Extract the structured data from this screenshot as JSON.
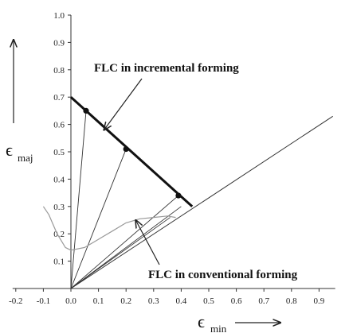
{
  "chart_data": {
    "type": "line",
    "title": "",
    "xlabel": {
      "symbol": "ϵ",
      "subscript": "min"
    },
    "ylabel": {
      "symbol": "ϵ",
      "subscript": "maj"
    },
    "xlim": [
      -0.2,
      0.95
    ],
    "ylim": [
      0,
      1.0
    ],
    "x_ticks": [
      "-0.2",
      "-0.1",
      "0.0",
      "0.1",
      "0.2",
      "0.3",
      "0.4",
      "0.5",
      "0.6",
      "0.7",
      "0.8",
      "0.9"
    ],
    "y_ticks": [
      "0.1",
      "0.2",
      "0.3",
      "0.4",
      "0.5",
      "0.6",
      "0.7",
      "0.8",
      "0.9",
      "1.0"
    ],
    "grid": false,
    "series": [
      {
        "name": "FLC in incremental forming",
        "style": "thick",
        "color": "#111111",
        "x": [
          0.0,
          0.44
        ],
        "y": [
          0.7,
          0.3
        ]
      },
      {
        "name": "FLC in conventional forming",
        "style": "thin",
        "color": "#9a9a9a",
        "x": [
          -0.1,
          -0.08,
          -0.05,
          -0.02,
          0.0,
          0.05,
          0.1,
          0.15,
          0.2,
          0.25,
          0.3,
          0.35,
          0.38
        ],
        "y": [
          0.3,
          0.27,
          0.2,
          0.15,
          0.14,
          0.15,
          0.18,
          0.21,
          0.24,
          0.255,
          0.26,
          0.265,
          0.26
        ]
      },
      {
        "name": "",
        "style": "reference",
        "color": "#333333",
        "x": [
          0.0,
          0.95
        ],
        "y": [
          0.0,
          0.63
        ]
      }
    ],
    "strain_paths": [
      {
        "x": [
          0.0,
          0.055
        ],
        "y": [
          0.0,
          0.65
        ]
      },
      {
        "x": [
          0.0,
          0.2
        ],
        "y": [
          0.0,
          0.51
        ]
      },
      {
        "x": [
          0.0,
          0.39
        ],
        "y": [
          0.0,
          0.34
        ]
      },
      {
        "x": [
          0.0,
          0.4
        ],
        "y": [
          0.0,
          0.3
        ]
      },
      {
        "x": [
          0.0,
          0.36
        ],
        "y": [
          0.0,
          0.26
        ]
      }
    ],
    "points": [
      {
        "x": 0.055,
        "y": 0.65
      },
      {
        "x": 0.2,
        "y": 0.51
      },
      {
        "x": 0.39,
        "y": 0.34
      }
    ],
    "annotations": [
      {
        "text": "FLC in incremental forming",
        "arrow_to": {
          "x": 0.12,
          "y": 0.58
        }
      },
      {
        "text": "FLC in conventional forming",
        "arrow_to": {
          "x": 0.22,
          "y": 0.25
        }
      }
    ]
  }
}
